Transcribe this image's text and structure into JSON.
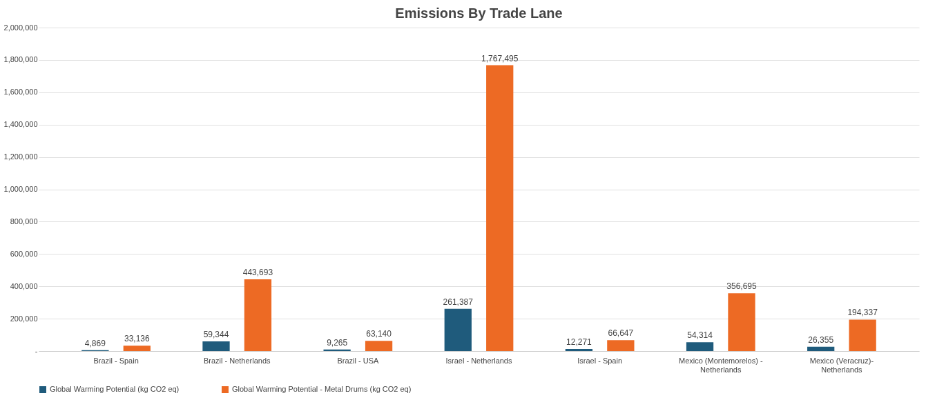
{
  "chart_data": {
    "type": "bar",
    "title": "Emissions By Trade Lane",
    "categories": [
      "Brazil - Spain",
      "Brazil - Netherlands",
      "Brazil - USA",
      "Israel - Netherlands",
      "Israel - Spain",
      "Mexico (Montemorelos) - Netherlands",
      "Mexico (Veracruz)- Netherlands"
    ],
    "series": [
      {
        "name": "Global Warming Potential (kg CO2 eq)",
        "color": "#1f5b7c",
        "values": [
          4869,
          59344,
          9265,
          261387,
          12271,
          54314,
          26355
        ],
        "value_labels": [
          "4,869",
          "59,344",
          "9,265",
          "261,387",
          "12,271",
          "54,314",
          "26,355"
        ]
      },
      {
        "name": "Global Warming Potential - Metal Drums (kg CO2 eq)",
        "color": "#ed6a24",
        "values": [
          33136,
          443693,
          63140,
          1767495,
          66647,
          356695,
          194337
        ],
        "value_labels": [
          "33,136",
          "443,693",
          "63,140",
          "1,767,495",
          "66,647",
          "356,695",
          "194,337"
        ]
      }
    ],
    "ylim": [
      0,
      2000000
    ],
    "yticks": [
      {
        "value": 0,
        "label": "-"
      },
      {
        "value": 200000,
        "label": "200,000"
      },
      {
        "value": 400000,
        "label": "400,000"
      },
      {
        "value": 600000,
        "label": "600,000"
      },
      {
        "value": 800000,
        "label": "800,000"
      },
      {
        "value": 1000000,
        "label": "1,000,000"
      },
      {
        "value": 1200000,
        "label": "1,200,000"
      },
      {
        "value": 1400000,
        "label": "1,400,000"
      },
      {
        "value": 1600000,
        "label": "1,600,000"
      },
      {
        "value": 1800000,
        "label": "1,800,000"
      },
      {
        "value": 2000000,
        "label": "2,000,000"
      }
    ],
    "grid": "y",
    "legend": "bottom"
  }
}
